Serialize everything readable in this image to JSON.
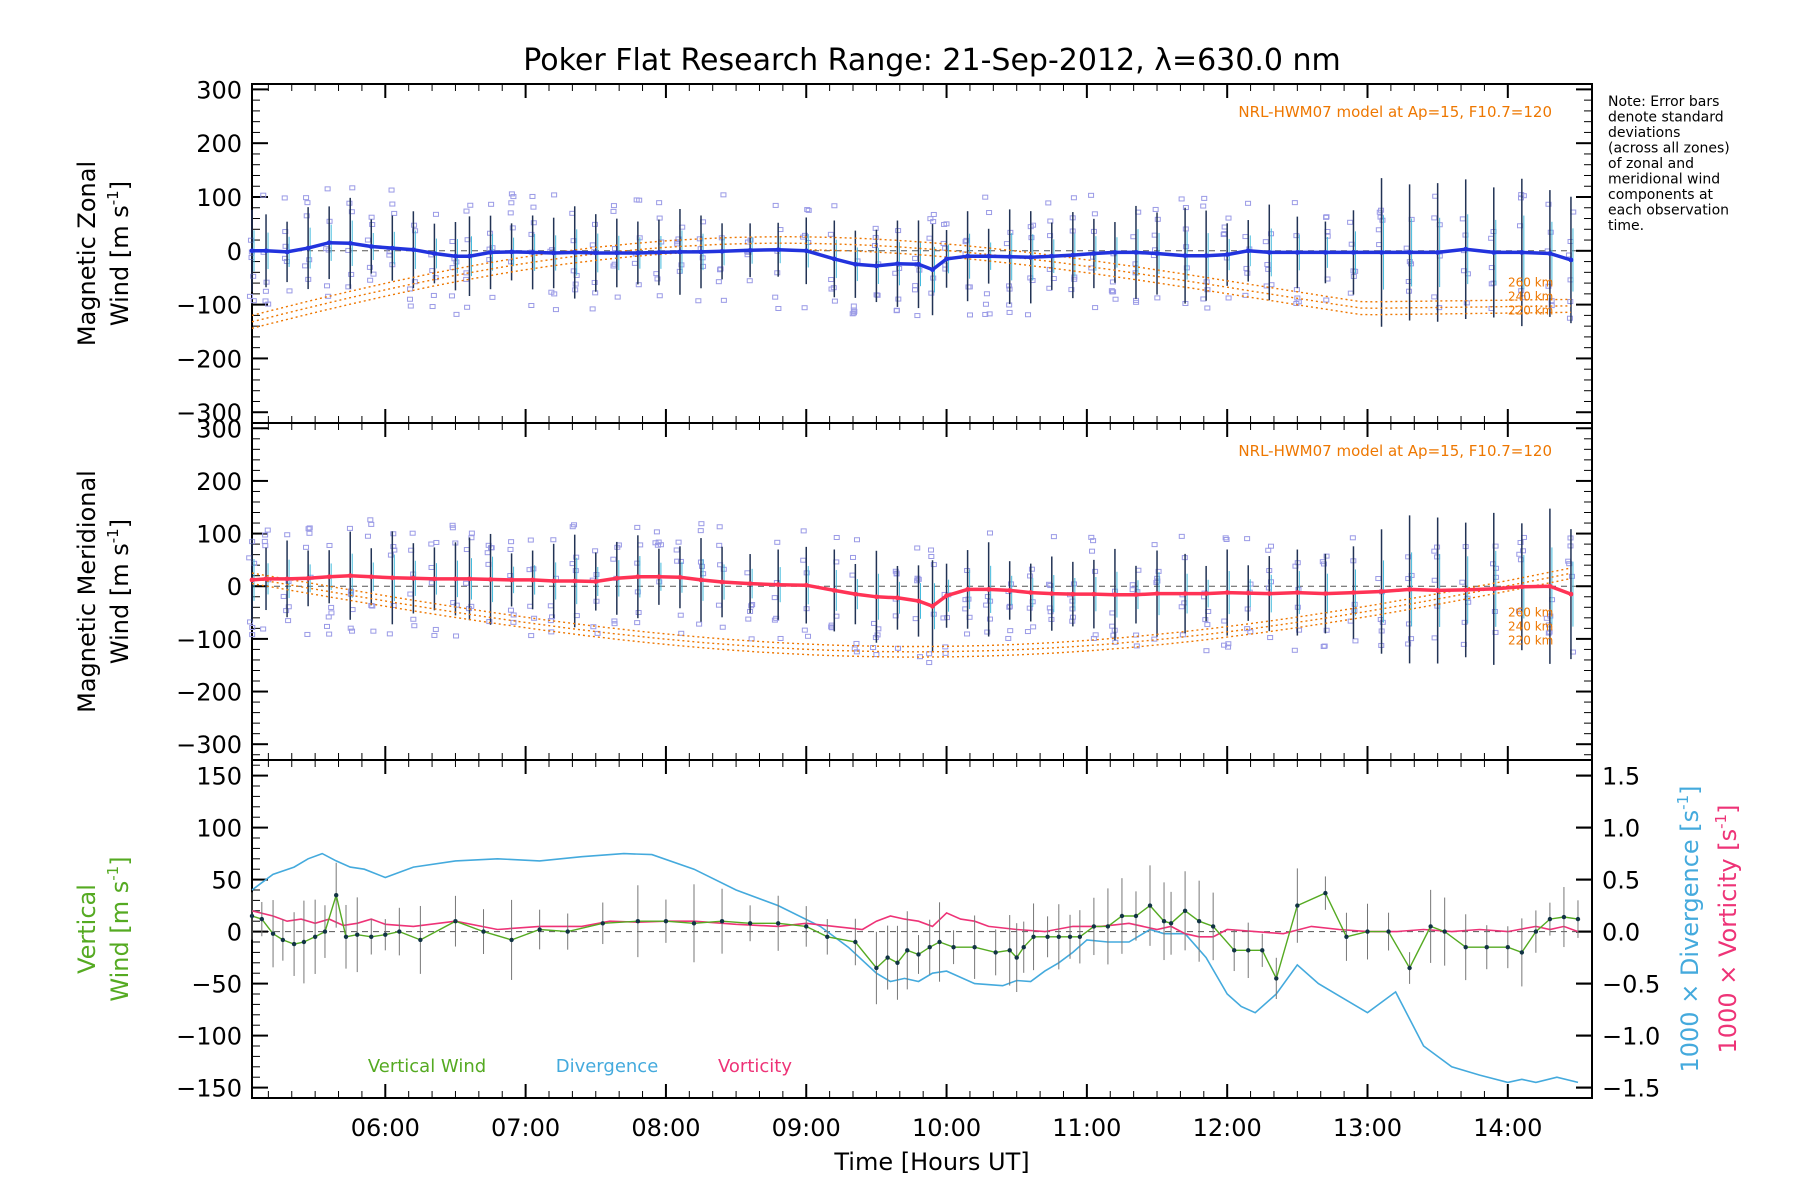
{
  "title": "Poker Flat Research Range: 21-Sep-2012, λ=630.0 nm",
  "note": [
    "Note: Error bars",
    "denote standard",
    "deviations",
    "(across all zones)",
    "of zonal and",
    "meridional wind",
    "components at",
    "each observation",
    "time."
  ],
  "colors": {
    "zonal": "#2233dd",
    "meridional": "#ff3355",
    "model": "#ee7700",
    "scatter": "#9a9ae6",
    "vertical": "#55aa22",
    "divergence": "#44aadd",
    "vorticity": "#ee3377",
    "axis": "#000000"
  },
  "chart_data": [
    {
      "type": "line",
      "name": "zonal",
      "ylabel_line1": "Magnetic Zonal",
      "ylabel_line2": "Wind [m s",
      "ylabel_sup": "-1",
      "ylabel_close": "]",
      "ylim": [
        -320,
        310
      ],
      "yticks": [
        "300",
        "200",
        "100",
        "0",
        "−100",
        "−200",
        "−300"
      ],
      "ytick_values": [
        300,
        200,
        100,
        0,
        -100,
        -200,
        -300
      ],
      "model_label": "NRL-HWM07 model at Ap=15, F10.7=120",
      "altitude_labels": [
        "260 km",
        "240 km",
        "220 km"
      ],
      "series": [
        {
          "x": [
            5.05,
            5.15,
            5.3,
            5.45,
            5.6,
            5.75,
            5.9,
            6.05,
            6.2,
            6.35,
            6.5,
            6.6,
            6.75,
            6.9,
            7.05,
            7.2,
            7.35,
            7.5,
            7.65,
            7.8,
            7.95,
            8.1,
            8.25,
            8.4,
            8.6,
            8.8,
            9.0,
            9.2,
            9.35,
            9.5,
            9.65,
            9.8,
            9.9,
            10.0,
            10.15,
            10.3,
            10.45,
            10.6,
            10.75,
            10.9,
            11.05,
            11.2,
            11.35,
            11.5,
            11.7,
            11.85,
            12.0,
            12.15,
            12.3,
            12.5,
            12.7,
            12.9,
            13.1,
            13.3,
            13.5,
            13.7,
            13.9,
            14.1,
            14.3,
            14.45
          ],
          "y": [
            0,
            0,
            -2,
            5,
            15,
            14,
            8,
            5,
            2,
            -5,
            -10,
            -10,
            -3,
            -2,
            -3,
            -4,
            -3,
            -4,
            -4,
            -4,
            -3,
            -2,
            -2,
            -1,
            1,
            2,
            0,
            -15,
            -25,
            -28,
            -24,
            -25,
            -35,
            -15,
            -10,
            -10,
            -11,
            -12,
            -10,
            -8,
            -5,
            -3,
            -3,
            -5,
            -9,
            -9,
            -7,
            0,
            -3,
            -3,
            -3,
            -3,
            -3,
            -3,
            -3,
            3,
            -3,
            -3,
            -5,
            -17
          ]
        }
      ]
    },
    {
      "type": "line",
      "name": "meridional",
      "ylabel_line1": "Magnetic Meridional",
      "ylabel_line2": "Wind [m s",
      "ylabel_sup": "-1",
      "ylabel_close": "]",
      "ylim": [
        -330,
        310
      ],
      "yticks": [
        "300",
        "200",
        "100",
        "0",
        "−100",
        "−200",
        "−300"
      ],
      "ytick_values": [
        300,
        200,
        100,
        0,
        -100,
        -200,
        -300
      ],
      "model_label": "NRL-HWM07 model at Ap=15, F10.7=120",
      "altitude_labels": [
        "260 km",
        "240 km",
        "220 km"
      ],
      "series": [
        {
          "x": [
            5.05,
            5.15,
            5.3,
            5.45,
            5.6,
            5.75,
            5.9,
            6.05,
            6.2,
            6.35,
            6.5,
            6.6,
            6.75,
            6.9,
            7.05,
            7.2,
            7.35,
            7.5,
            7.65,
            7.8,
            7.95,
            8.1,
            8.25,
            8.4,
            8.6,
            8.8,
            9.0,
            9.2,
            9.35,
            9.5,
            9.65,
            9.8,
            9.9,
            10.0,
            10.15,
            10.3,
            10.45,
            10.6,
            10.75,
            10.9,
            11.05,
            11.2,
            11.35,
            11.5,
            11.7,
            11.85,
            12.0,
            12.15,
            12.3,
            12.5,
            12.7,
            12.9,
            13.1,
            13.3,
            13.5,
            13.7,
            13.9,
            14.1,
            14.3,
            14.45
          ],
          "y": [
            12,
            14,
            14,
            15,
            18,
            20,
            18,
            16,
            15,
            14,
            14,
            14,
            13,
            12,
            12,
            10,
            10,
            9,
            15,
            18,
            18,
            17,
            12,
            8,
            5,
            3,
            2,
            -8,
            -15,
            -20,
            -22,
            -28,
            -38,
            -18,
            -6,
            -6,
            -8,
            -12,
            -14,
            -15,
            -15,
            -16,
            -16,
            -14,
            -14,
            -14,
            -12,
            -13,
            -14,
            -12,
            -14,
            -12,
            -10,
            -6,
            -8,
            -7,
            -5,
            -1,
            0,
            -15
          ]
        }
      ]
    },
    {
      "type": "line",
      "name": "vertical",
      "ylabel_line1": "Vertical",
      "ylabel_line2": "Wind [m s",
      "ylabel_sup": "-1",
      "ylabel_close": "]",
      "ylim": [
        -160,
        165
      ],
      "yticks": [
        "150",
        "100",
        "50",
        "0",
        "−50",
        "−100",
        "−150"
      ],
      "ytick_values": [
        150,
        100,
        50,
        0,
        -50,
        -100,
        -150
      ],
      "y2lim": [
        -1.6,
        1.65
      ],
      "y2ticks": [
        "1.5",
        "1.0",
        "0.5",
        "0.0",
        "−0.5",
        "−1.0",
        "−1.5"
      ],
      "y2tick_values": [
        1.5,
        1.0,
        0.5,
        0.0,
        -0.5,
        -1.0,
        -1.5
      ],
      "y2label_div_prefix": "1000 × Divergence [s",
      "y2label_vor_prefix": "1000 × Vorticity [s",
      "y2label_sup": "-1",
      "y2label_close": "]",
      "legend": [
        "Vertical Wind",
        "Divergence",
        "Vorticity"
      ],
      "series": [
        {
          "name": "Vertical Wind",
          "x": [
            5.05,
            5.12,
            5.2,
            5.27,
            5.35,
            5.42,
            5.5,
            5.57,
            5.65,
            5.72,
            5.8,
            5.9,
            6.0,
            6.1,
            6.25,
            6.5,
            6.7,
            6.9,
            7.1,
            7.3,
            7.55,
            7.8,
            8.0,
            8.2,
            8.4,
            8.6,
            8.8,
            9.0,
            9.15,
            9.35,
            9.5,
            9.58,
            9.65,
            9.72,
            9.8,
            9.88,
            9.95,
            10.05,
            10.2,
            10.35,
            10.45,
            10.5,
            10.55,
            10.62,
            10.72,
            10.8,
            10.88,
            10.95,
            11.05,
            11.15,
            11.25,
            11.35,
            11.45,
            11.55,
            11.6,
            11.7,
            11.8,
            11.9,
            12.05,
            12.15,
            12.25,
            12.35,
            12.5,
            12.7,
            12.85,
            13.0,
            13.15,
            13.3,
            13.45,
            13.55,
            13.7,
            13.85,
            14.0,
            14.1,
            14.2,
            14.3,
            14.4,
            14.5
          ],
          "y": [
            15,
            12,
            -2,
            -8,
            -12,
            -10,
            -5,
            0,
            35,
            -5,
            -3,
            -5,
            -3,
            0,
            -8,
            10,
            0,
            -8,
            2,
            0,
            8,
            10,
            10,
            8,
            10,
            8,
            8,
            5,
            -5,
            -10,
            -35,
            -25,
            -30,
            -18,
            -22,
            -15,
            -10,
            -15,
            -15,
            -20,
            -18,
            -25,
            -15,
            -5,
            -5,
            -5,
            -5,
            -5,
            5,
            5,
            15,
            15,
            25,
            10,
            8,
            20,
            10,
            5,
            -18,
            -18,
            -18,
            -45,
            25,
            37,
            -5,
            0,
            0,
            -35,
            5,
            0,
            -15,
            -15,
            -15,
            -20,
            0,
            12,
            14,
            12
          ]
        },
        {
          "name": "Divergence",
          "x": [
            5.05,
            5.2,
            5.35,
            5.45,
            5.55,
            5.65,
            5.75,
            5.85,
            6.0,
            6.2,
            6.5,
            6.8,
            7.1,
            7.4,
            7.7,
            7.9,
            8.2,
            8.5,
            8.8,
            9.1,
            9.3,
            9.5,
            9.6,
            9.7,
            9.8,
            9.9,
            10.0,
            10.2,
            10.4,
            10.5,
            10.6,
            10.7,
            10.8,
            10.9,
            11.0,
            11.15,
            11.3,
            11.45,
            11.55,
            11.7,
            11.85,
            12.0,
            12.1,
            12.2,
            12.35,
            12.5,
            12.65,
            12.8,
            13.0,
            13.2,
            13.4,
            13.6,
            13.8,
            14.0,
            14.1,
            14.2,
            14.35,
            14.5
          ],
          "y": [
            0.4,
            0.55,
            0.62,
            0.7,
            0.75,
            0.68,
            0.62,
            0.6,
            0.52,
            0.62,
            0.68,
            0.7,
            0.68,
            0.72,
            0.75,
            0.74,
            0.6,
            0.4,
            0.25,
            0.05,
            -0.15,
            -0.4,
            -0.48,
            -0.45,
            -0.48,
            -0.4,
            -0.38,
            -0.5,
            -0.52,
            -0.47,
            -0.48,
            -0.38,
            -0.3,
            -0.2,
            -0.08,
            -0.1,
            -0.1,
            0.02,
            -0.02,
            -0.02,
            -0.25,
            -0.6,
            -0.72,
            -0.78,
            -0.6,
            -0.32,
            -0.5,
            -0.62,
            -0.78,
            -0.58,
            -1.1,
            -1.3,
            -1.38,
            -1.45,
            -1.42,
            -1.45,
            -1.4,
            -1.45
          ]
        },
        {
          "name": "Vorticity",
          "x": [
            5.05,
            5.2,
            5.3,
            5.4,
            5.5,
            5.6,
            5.7,
            5.8,
            5.9,
            6.0,
            6.2,
            6.5,
            6.8,
            7.1,
            7.4,
            7.6,
            7.8,
            8.0,
            8.2,
            8.5,
            8.8,
            9.0,
            9.2,
            9.4,
            9.5,
            9.6,
            9.7,
            9.8,
            9.9,
            10.0,
            10.1,
            10.2,
            10.3,
            10.5,
            10.7,
            10.9,
            11.1,
            11.3,
            11.5,
            11.6,
            11.7,
            11.8,
            11.9,
            12.0,
            12.2,
            12.4,
            12.6,
            12.8,
            13.0,
            13.2,
            13.4,
            13.6,
            13.8,
            14.0,
            14.2,
            14.3,
            14.4,
            14.5
          ],
          "y": [
            0.2,
            0.15,
            0.1,
            0.12,
            0.08,
            0.12,
            0.06,
            0.08,
            0.12,
            0.07,
            0.05,
            0.1,
            0.02,
            0.05,
            0.05,
            0.1,
            0.09,
            0.1,
            0.1,
            0.07,
            0.05,
            0.08,
            0.05,
            0.02,
            0.1,
            0.15,
            0.12,
            0.1,
            0.05,
            0.18,
            0.12,
            0.1,
            0.05,
            0.02,
            0.0,
            0.05,
            0.05,
            0.08,
            0.02,
            0.05,
            -0.02,
            -0.05,
            -0.05,
            0.02,
            0.0,
            -0.02,
            0.05,
            0.02,
            0.0,
            0.0,
            0.02,
            0.0,
            0.02,
            0.0,
            0.05,
            0.02,
            0.05,
            0.0
          ]
        }
      ]
    }
  ],
  "x_axis": {
    "label": "Time [Hours UT]",
    "xlim": [
      5.05,
      14.6
    ],
    "ticks": [
      "06:00",
      "07:00",
      "08:00",
      "09:00",
      "10:00",
      "11:00",
      "12:00",
      "13:00",
      "14:00"
    ],
    "tick_values": [
      6,
      7,
      8,
      9,
      10,
      11,
      12,
      13,
      14
    ]
  }
}
